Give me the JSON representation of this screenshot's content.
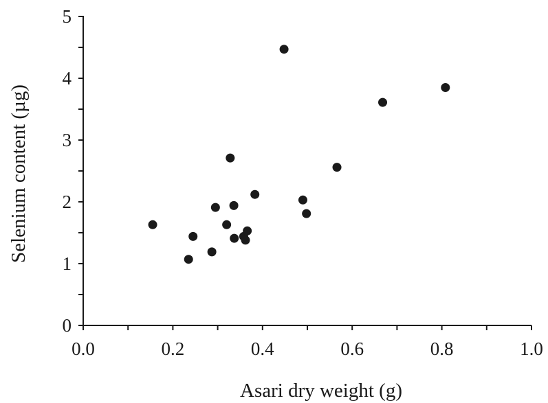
{
  "chart_data": {
    "type": "scatter",
    "xlabel": "Asari dry weight (g)",
    "ylabel": "Selenium content (µg)",
    "xlim": [
      0.0,
      1.0
    ],
    "ylim": [
      0,
      5
    ],
    "x_ticks": [
      "0.0",
      "0.2",
      "0.4",
      "0.6",
      "0.8",
      "1.0"
    ],
    "y_ticks": [
      "0",
      "1",
      "2",
      "3",
      "4",
      "5"
    ],
    "grid": false,
    "series": [
      {
        "points": [
          {
            "x": 0.155,
            "y": 1.63
          },
          {
            "x": 0.235,
            "y": 1.07
          },
          {
            "x": 0.245,
            "y": 1.44
          },
          {
            "x": 0.287,
            "y": 1.19
          },
          {
            "x": 0.295,
            "y": 1.91
          },
          {
            "x": 0.32,
            "y": 1.63
          },
          {
            "x": 0.328,
            "y": 2.71
          },
          {
            "x": 0.336,
            "y": 1.94
          },
          {
            "x": 0.337,
            "y": 1.41
          },
          {
            "x": 0.358,
            "y": 1.44
          },
          {
            "x": 0.362,
            "y": 1.38
          },
          {
            "x": 0.366,
            "y": 1.53
          },
          {
            "x": 0.383,
            "y": 2.12
          },
          {
            "x": 0.448,
            "y": 4.47
          },
          {
            "x": 0.49,
            "y": 2.03
          },
          {
            "x": 0.498,
            "y": 1.81
          },
          {
            "x": 0.566,
            "y": 2.56
          },
          {
            "x": 0.668,
            "y": 3.61
          },
          {
            "x": 0.808,
            "y": 3.85
          }
        ]
      }
    ]
  }
}
